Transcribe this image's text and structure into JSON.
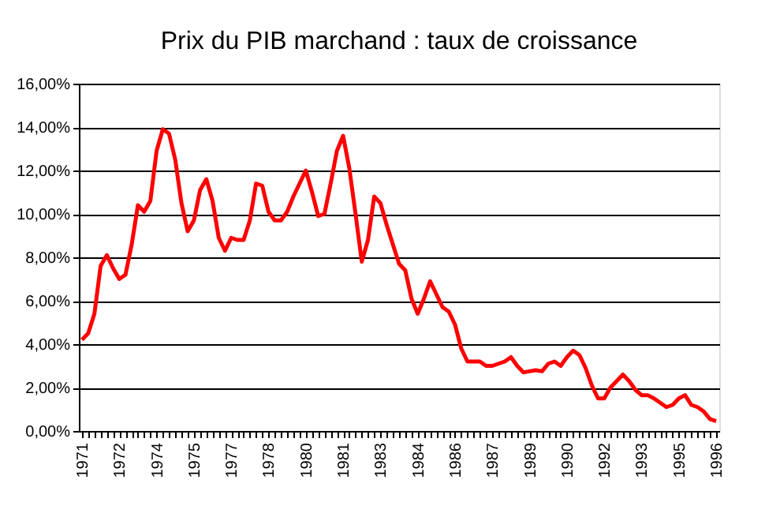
{
  "chart_data": {
    "type": "line",
    "title": "Prix du PIB marchand : taux de croissance",
    "categories": [
      "1971",
      null,
      null,
      null,
      null,
      null,
      "1972",
      null,
      null,
      null,
      null,
      null,
      "1974",
      null,
      null,
      null,
      null,
      null,
      "1975",
      null,
      null,
      null,
      null,
      null,
      "1977",
      null,
      null,
      null,
      null,
      null,
      "1978",
      null,
      null,
      null,
      null,
      null,
      "1980",
      null,
      null,
      null,
      null,
      null,
      "1981",
      null,
      null,
      null,
      null,
      null,
      "1983",
      null,
      null,
      null,
      null,
      null,
      "1984",
      null,
      null,
      null,
      null,
      null,
      "1986",
      null,
      null,
      null,
      null,
      null,
      "1987",
      null,
      null,
      null,
      null,
      null,
      "1989",
      null,
      null,
      null,
      null,
      null,
      "1990",
      null,
      null,
      null,
      null,
      null,
      "1992",
      null,
      null,
      null,
      null,
      null,
      "1993",
      null,
      null,
      null,
      null,
      null,
      "1995",
      null,
      null,
      null,
      null,
      null,
      "1996"
    ],
    "series": [
      {
        "color": "#ff0000",
        "values": [
          4.2,
          4.5,
          5.4,
          7.6,
          8.1,
          7.5,
          7.0,
          7.2,
          8.6,
          10.4,
          10.1,
          10.6,
          12.9,
          13.9,
          13.7,
          12.5,
          10.5,
          9.2,
          9.7,
          11.1,
          11.6,
          10.6,
          8.9,
          8.3,
          8.9,
          8.8,
          8.8,
          9.7,
          11.4,
          11.3,
          10.1,
          9.7,
          9.7,
          10.1,
          10.8,
          11.4,
          12.0,
          11.0,
          9.9,
          10.0,
          11.4,
          12.9,
          13.6,
          12.1,
          10.0,
          7.8,
          8.8,
          10.8,
          10.5,
          9.5,
          8.6,
          7.7,
          7.4,
          6.1,
          5.4,
          6.1,
          6.9,
          6.3,
          5.7,
          5.5,
          4.9,
          3.8,
          3.2,
          3.2,
          3.2,
          3.0,
          3.0,
          3.1,
          3.2,
          3.4,
          3.0,
          2.7,
          2.75,
          2.8,
          2.75,
          3.1,
          3.2,
          3.0,
          3.4,
          3.7,
          3.5,
          2.9,
          2.1,
          1.5,
          1.5,
          2.0,
          2.3,
          2.6,
          2.3,
          1.9,
          1.65,
          1.65,
          1.5,
          1.3,
          1.1,
          1.2,
          1.5,
          1.65,
          1.2,
          1.1,
          0.9,
          0.55,
          0.45
        ]
      }
    ],
    "ylim": [
      0,
      16
    ],
    "yticks": [
      {
        "value": 0,
        "label": "0,00%"
      },
      {
        "value": 2,
        "label": "2,00%"
      },
      {
        "value": 4,
        "label": "4,00%"
      },
      {
        "value": 6,
        "label": "6,00%"
      },
      {
        "value": 8,
        "label": "8,00%"
      },
      {
        "value": 10,
        "label": "10,00%"
      },
      {
        "value": 12,
        "label": "12,00%"
      },
      {
        "value": 14,
        "label": "14,00%"
      },
      {
        "value": 16,
        "label": "16,00%"
      }
    ],
    "grid": "y",
    "legend": false,
    "marker": "none",
    "line_style": "solid"
  }
}
